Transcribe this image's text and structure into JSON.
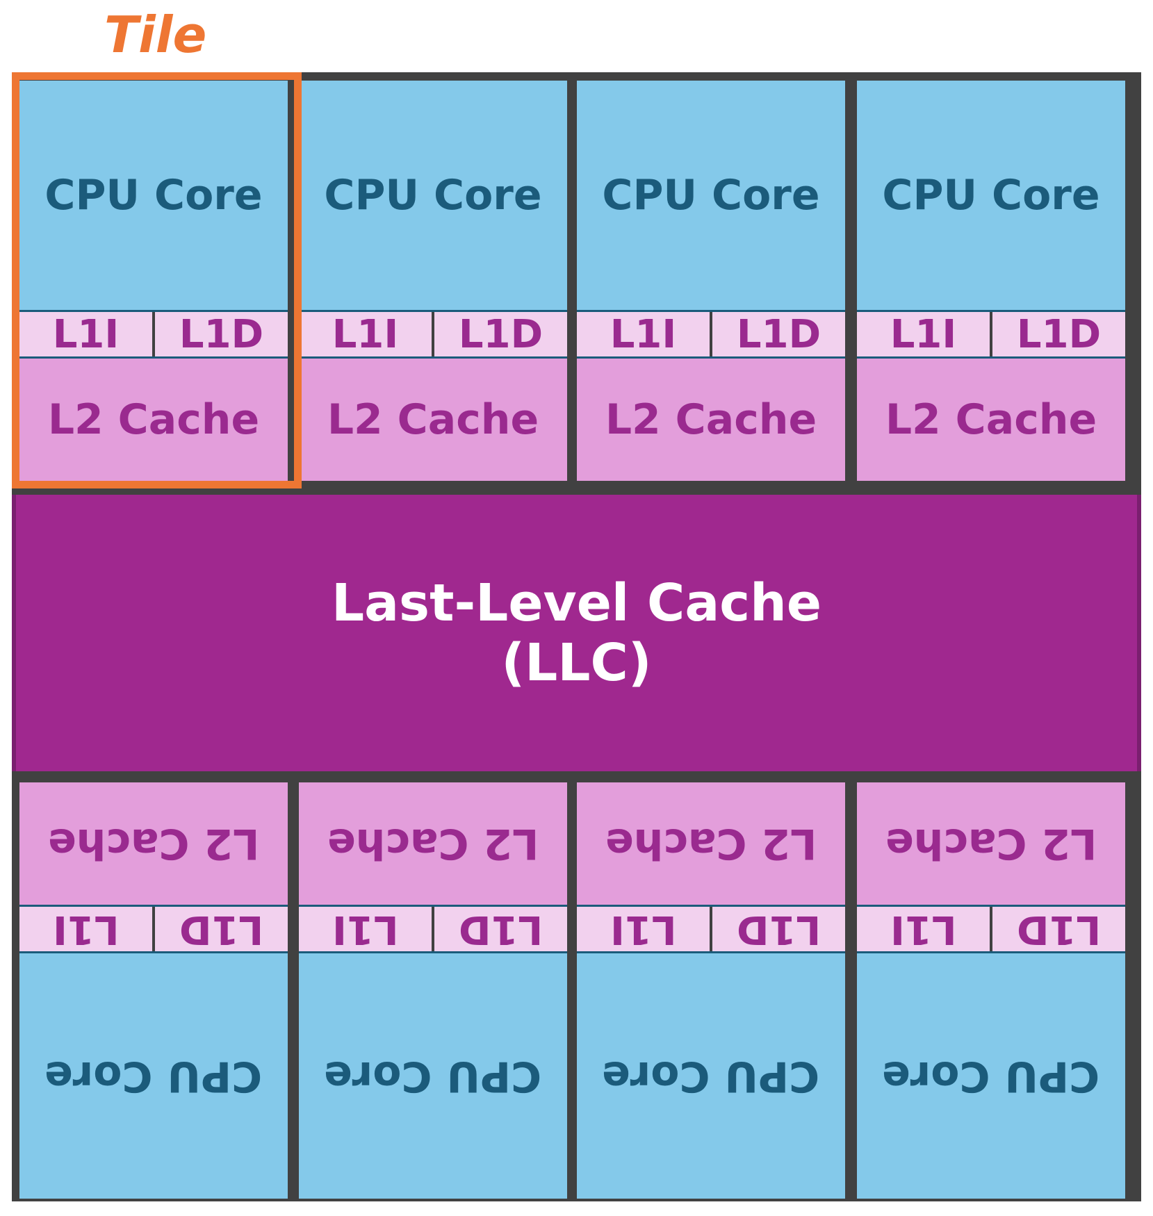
{
  "tile_label": "Tile",
  "top_tiles": [
    {
      "core": "CPU Core",
      "l1i": "L1I",
      "l1d": "L1D",
      "l2": "L2 Cache"
    },
    {
      "core": "CPU Core",
      "l1i": "L1I",
      "l1d": "L1D",
      "l2": "L2 Cache"
    },
    {
      "core": "CPU Core",
      "l1i": "L1I",
      "l1d": "L1D",
      "l2": "L2 Cache"
    },
    {
      "core": "CPU Core",
      "l1i": "L1I",
      "l1d": "L1D",
      "l2": "L2 Cache"
    }
  ],
  "llc": {
    "line1": "Last-Level Cache",
    "line2": "(LLC)"
  },
  "bottom_tiles": [
    {
      "core": "CPU Core",
      "l1i": "L1I",
      "l1d": "L1D",
      "l2": "L2 Cache"
    },
    {
      "core": "CPU Core",
      "l1i": "L1I",
      "l1d": "L1D",
      "l2": "L2 Cache"
    },
    {
      "core": "CPU Core",
      "l1i": "L1I",
      "l1d": "L1D",
      "l2": "L2 Cache"
    },
    {
      "core": "CPU Core",
      "l1i": "L1I",
      "l1d": "L1D",
      "l2": "L2 Cache"
    }
  ],
  "colors": {
    "core": "#84c9ea",
    "l1": "#f2d1ee",
    "l2": "#e39edb",
    "llc": "#a0288f",
    "tile_highlight": "#ee7633",
    "frame": "#414141"
  }
}
